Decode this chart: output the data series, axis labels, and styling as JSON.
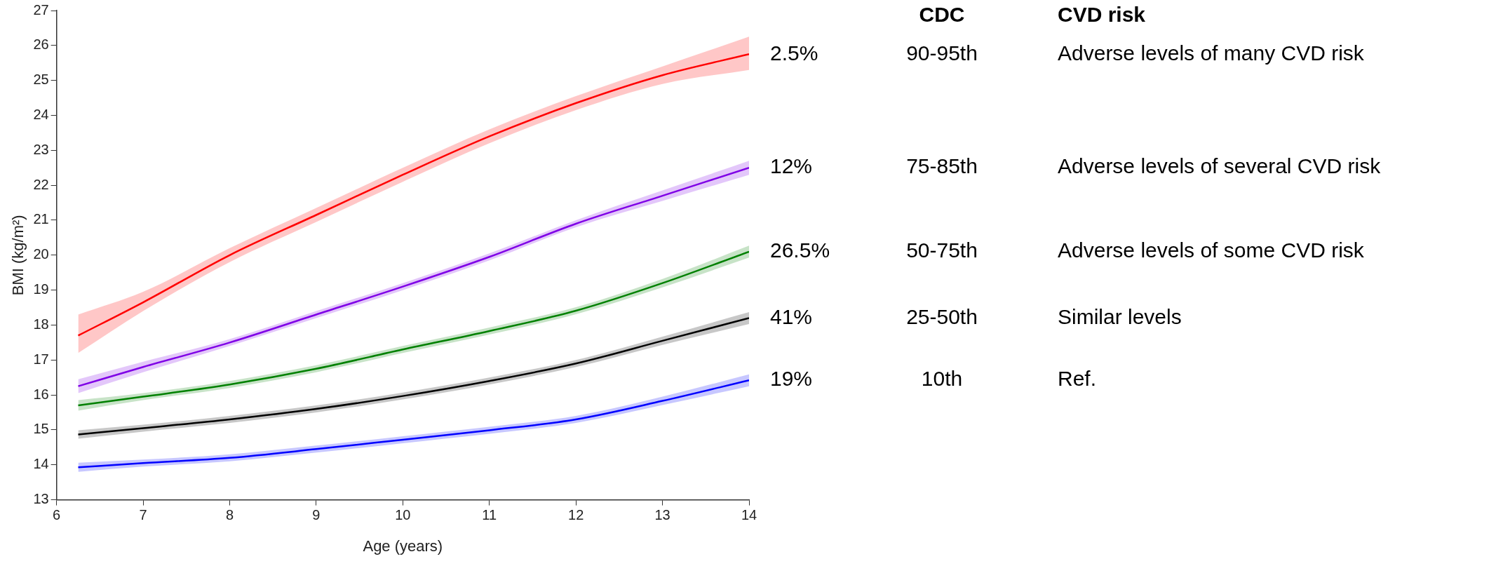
{
  "chart_data": {
    "type": "line",
    "xlabel": "Age (years)",
    "ylabel": "BMI (kg/m²)",
    "xlim": [
      6,
      14
    ],
    "ylim": [
      13,
      27
    ],
    "xticks": [
      6,
      7,
      8,
      9,
      10,
      11,
      12,
      13,
      14
    ],
    "yticks": [
      13,
      14,
      15,
      16,
      17,
      18,
      19,
      20,
      21,
      22,
      23,
      24,
      25,
      26,
      27
    ],
    "x": [
      6.25,
      7,
      8,
      9,
      10,
      11,
      12,
      13,
      14
    ],
    "series": [
      {
        "name": "2.5%",
        "color": "#ff0000",
        "values": [
          17.7,
          18.65,
          20.0,
          21.15,
          22.3,
          23.4,
          24.35,
          25.15,
          25.75
        ],
        "lower": [
          17.2,
          18.4,
          19.8,
          20.95,
          22.1,
          23.2,
          24.15,
          24.9,
          25.3
        ],
        "upper": [
          18.3,
          18.95,
          20.2,
          21.35,
          22.5,
          23.6,
          24.55,
          25.4,
          26.25
        ]
      },
      {
        "name": "12%",
        "color": "#7f00e6",
        "values": [
          16.25,
          16.8,
          17.5,
          18.3,
          19.1,
          19.95,
          20.9,
          21.7,
          22.5
        ],
        "lower": [
          16.05,
          16.65,
          17.4,
          18.2,
          19.0,
          19.85,
          20.8,
          21.55,
          22.3
        ],
        "upper": [
          16.45,
          16.95,
          17.6,
          18.4,
          19.2,
          20.05,
          21.0,
          21.85,
          22.7
        ]
      },
      {
        "name": "26.5%",
        "color": "#008000",
        "values": [
          15.7,
          15.95,
          16.3,
          16.75,
          17.3,
          17.83,
          18.41,
          19.2,
          20.1
        ],
        "lower": [
          15.55,
          15.85,
          16.2,
          16.65,
          17.2,
          17.73,
          18.31,
          19.08,
          19.93
        ],
        "upper": [
          15.85,
          16.05,
          16.4,
          16.85,
          17.4,
          17.93,
          18.51,
          19.32,
          20.27
        ]
      },
      {
        "name": "41%",
        "color": "#000000",
        "values": [
          14.87,
          15.05,
          15.3,
          15.6,
          15.97,
          16.4,
          16.9,
          17.55,
          18.2
        ],
        "lower": [
          14.75,
          14.95,
          15.2,
          15.5,
          15.87,
          16.3,
          16.8,
          17.43,
          18.03
        ],
        "upper": [
          14.99,
          15.15,
          15.4,
          15.7,
          16.07,
          16.5,
          17.0,
          17.67,
          18.37
        ]
      },
      {
        "name": "19%",
        "color": "#0000ff",
        "values": [
          13.93,
          14.05,
          14.2,
          14.45,
          14.72,
          14.99,
          15.3,
          15.83,
          16.42
        ],
        "lower": [
          13.8,
          13.95,
          14.1,
          14.35,
          14.62,
          14.89,
          15.2,
          15.71,
          16.25
        ],
        "upper": [
          14.06,
          14.15,
          14.3,
          14.55,
          14.82,
          15.09,
          15.4,
          15.95,
          16.59
        ]
      }
    ],
    "annotations": [
      "CDC",
      "CVD risk",
      "90-95th",
      "Adverse levels of many CVD risk",
      "75-85th",
      "Adverse levels of several CVD risk",
      "50-75th",
      "Adverse levels of some CVD risk",
      "25-50th",
      "Similar levels",
      "10th",
      "Ref."
    ]
  }
}
